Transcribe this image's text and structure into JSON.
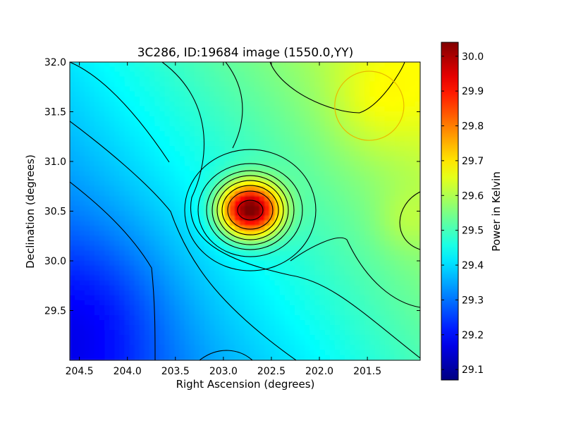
{
  "chart_data": {
    "type": "heatmap",
    "title": "3C286, ID:19684 image (1550.0,YY)",
    "xlabel": "Right Ascension (degrees)",
    "ylabel": "Declination (degrees)",
    "colorbar_label": "Power in Kelvin",
    "colormap": "jet",
    "xlim": [
      204.6,
      200.95
    ],
    "ylim": [
      29.0,
      32.0
    ],
    "clim": [
      29.07,
      30.04
    ],
    "x_ticks": [
      204.5,
      204.0,
      203.5,
      203.0,
      202.5,
      202.0,
      201.5
    ],
    "x_tick_labels": [
      "204.5",
      "204.0",
      "203.5",
      "203.0",
      "202.5",
      "202.0",
      "201.5"
    ],
    "y_ticks": [
      29.5,
      30.0,
      30.5,
      31.0,
      31.5,
      32.0
    ],
    "y_tick_labels": [
      "29.5",
      "30.0",
      "30.5",
      "31.0",
      "31.5",
      "32.0"
    ],
    "colorbar_ticks": [
      29.1,
      29.2,
      29.3,
      29.4,
      29.5,
      29.6,
      29.7,
      29.8,
      29.9,
      30.0
    ],
    "colorbar_tick_labels": [
      "29.1",
      "29.2",
      "29.3",
      "29.4",
      "29.5",
      "29.6",
      "29.7",
      "29.8",
      "29.9",
      "30.0"
    ],
    "peak": {
      "ra": 202.72,
      "dec": 30.51,
      "value": 30.04
    },
    "beam_circle": {
      "ra": 201.48,
      "dec": 31.56,
      "radius_deg": 0.36,
      "color": "#e8b800"
    },
    "contour_color": "#000000",
    "grid": false
  }
}
